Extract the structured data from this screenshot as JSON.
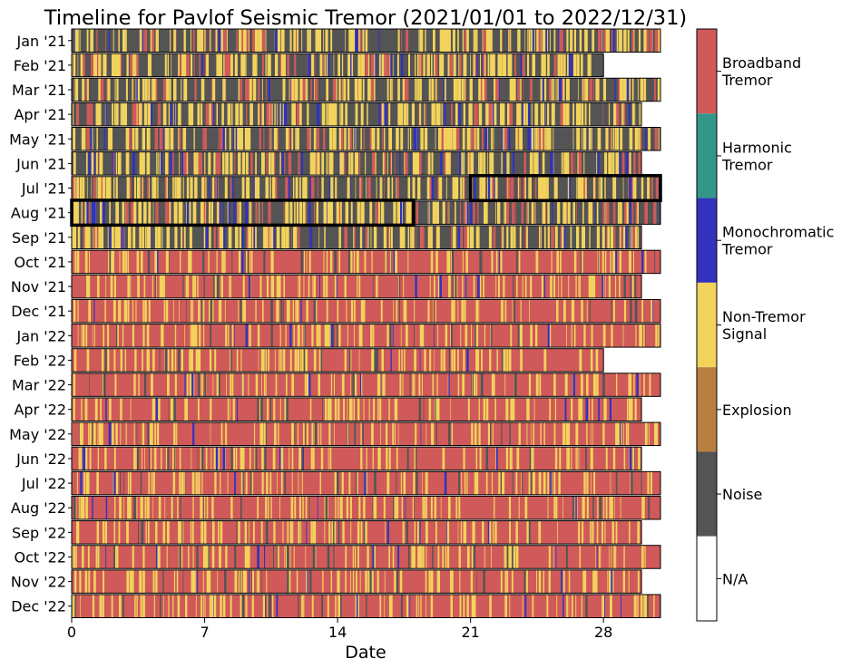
{
  "chart_data": {
    "type": "heatmap",
    "title": "Timeline for Pavlof Seismic Tremor (2021/01/01 to 2022/12/31)",
    "xlabel": "Date",
    "ylabel": "",
    "xlim": [
      0,
      31
    ],
    "xticks": [
      0,
      7,
      14,
      21,
      28
    ],
    "rows": [
      {
        "label": "Jan '21",
        "days": 31
      },
      {
        "label": "Feb '21",
        "days": 28
      },
      {
        "label": "Mar '21",
        "days": 31
      },
      {
        "label": "Apr '21",
        "days": 30
      },
      {
        "label": "May '21",
        "days": 31
      },
      {
        "label": "Jun '21",
        "days": 30
      },
      {
        "label": "Jul '21",
        "days": 31
      },
      {
        "label": "Aug '21",
        "days": 31
      },
      {
        "label": "Sep '21",
        "days": 30
      },
      {
        "label": "Oct '21",
        "days": 31
      },
      {
        "label": "Nov '21",
        "days": 30
      },
      {
        "label": "Dec '21",
        "days": 31
      },
      {
        "label": "Jan '22",
        "days": 31
      },
      {
        "label": "Feb '22",
        "days": 28
      },
      {
        "label": "Mar '22",
        "days": 31
      },
      {
        "label": "Apr '22",
        "days": 30
      },
      {
        "label": "May '22",
        "days": 31
      },
      {
        "label": "Jun '22",
        "days": 30
      },
      {
        "label": "Jul '22",
        "days": 31
      },
      {
        "label": "Aug '22",
        "days": 31
      },
      {
        "label": "Sep '22",
        "days": 30
      },
      {
        "label": "Oct '22",
        "days": 31
      },
      {
        "label": "Nov '22",
        "days": 30
      },
      {
        "label": "Dec '22",
        "days": 31
      }
    ],
    "classes": [
      {
        "name": "Broadband\nTremor",
        "color": "#d05a5a"
      },
      {
        "name": "Harmonic\nTremor",
        "color": "#329789"
      },
      {
        "name": "Monochromatic\nTremor",
        "color": "#3232bc"
      },
      {
        "name": "Non-Tremor\nSignal",
        "color": "#f2d35c"
      },
      {
        "name": "Explosion",
        "color": "#b88040"
      },
      {
        "name": "Noise",
        "color": "#545454"
      },
      {
        "name": "N/A",
        "color": "#ffffff"
      }
    ],
    "dominant_class_by_month": [
      "Noise",
      "Noise",
      "Noise",
      "Noise",
      "Noise",
      "Noise",
      "Noise",
      "Noise",
      "Noise",
      "Broadband\nTremor",
      "Broadband\nTremor",
      "Broadband\nTremor",
      "Broadband\nTremor",
      "Broadband\nTremor",
      "Broadband\nTremor",
      "Broadband\nTremor",
      "Broadband\nTremor",
      "Broadband\nTremor",
      "Broadband\nTremor",
      "Broadband\nTremor",
      "Broadband\nTremor",
      "Broadband\nTremor",
      "Broadband\nTremor",
      "Broadband\nTremor"
    ],
    "highlight_periods": [
      {
        "month": "Jul '21",
        "start_day": 21,
        "end_day": 31
      },
      {
        "month": "Aug '21",
        "start_day": 0,
        "end_day": 18
      }
    ]
  }
}
